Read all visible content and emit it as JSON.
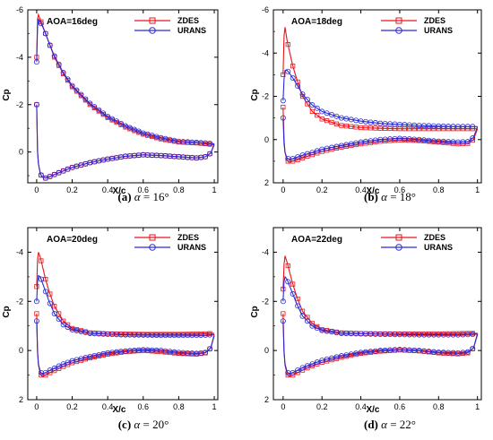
{
  "colors": {
    "zdes": "#e8141b",
    "urans": "#2a2ad6",
    "axis": "#000000"
  },
  "panels": [
    {
      "caption_letter": "(a)",
      "caption_rest": " = 16°",
      "caption_symbol": "α",
      "aoa_label": "AOA=16deg",
      "xlabel": "X/c",
      "ylabel": "Cp",
      "legend": [
        "ZDES",
        "URANS"
      ],
      "y_ticks": [
        "-6",
        "-4",
        "-2",
        "0"
      ],
      "x_ticks": [
        "0",
        "0.2",
        "0.4",
        "0.6",
        "0.8",
        "1"
      ]
    },
    {
      "caption_letter": "(b)",
      "caption_rest": " = 18°",
      "caption_symbol": "α",
      "aoa_label": "AOA=18deg",
      "xlabel": "X/c",
      "ylabel": "Cp",
      "legend": [
        "ZDES",
        "URANS"
      ],
      "y_ticks": [
        "-6",
        "-4",
        "-2",
        "0",
        "2"
      ],
      "x_ticks": [
        "0",
        "0.2",
        "0.4",
        "0.6",
        "0.8",
        "1"
      ]
    },
    {
      "caption_letter": "(c)",
      "caption_rest": " = 20°",
      "caption_symbol": "α",
      "aoa_label": "AOA=20deg",
      "xlabel": "X/c",
      "ylabel": "Cp",
      "legend": [
        "ZDES",
        "URANS"
      ],
      "y_ticks": [
        "-4",
        "-2",
        "0",
        "2"
      ],
      "x_ticks": [
        "0",
        "0.2",
        "0.4",
        "0.6",
        "0.8",
        "1"
      ]
    },
    {
      "caption_letter": "(d)",
      "caption_rest": " = 22°",
      "caption_symbol": "α",
      "aoa_label": "AOA=22deg",
      "xlabel": "X/c",
      "ylabel": "Cp",
      "legend": [
        "ZDES",
        "URANS"
      ],
      "y_ticks": [
        "-4",
        "-2",
        "0",
        "2"
      ],
      "x_ticks": [
        "0",
        "0.2",
        "0.4",
        "0.6",
        "0.8",
        "1"
      ]
    }
  ],
  "chart_data": [
    {
      "type": "line",
      "x_range": [
        -0.05,
        1.02
      ],
      "y_range": [
        -6,
        1.3
      ],
      "y_inverted": true,
      "series": [
        {
          "name": "ZDES",
          "upper": {
            "x": [
              1.0,
              0.95,
              0.9,
              0.8,
              0.7,
              0.6,
              0.5,
              0.4,
              0.3,
              0.2,
              0.15,
              0.1,
              0.07,
              0.05,
              0.03,
              0.02,
              0.01,
              0.005,
              0.0
            ],
            "y": [
              -0.3,
              -0.35,
              -0.38,
              -0.42,
              -0.55,
              -0.75,
              -1.05,
              -1.45,
              -2.0,
              -2.75,
              -3.3,
              -4.0,
              -4.6,
              -5.0,
              -5.4,
              -5.6,
              -5.8,
              -5.6,
              -4.0
            ]
          },
          "lower": {
            "x": [
              0.0,
              0.005,
              0.01,
              0.02,
              0.03,
              0.05,
              0.07,
              0.1,
              0.15,
              0.2,
              0.3,
              0.4,
              0.5,
              0.6,
              0.7,
              0.8,
              0.9,
              0.95,
              0.98,
              1.0
            ],
            "y": [
              -2.0,
              0.0,
              0.5,
              0.9,
              1.05,
              1.1,
              1.05,
              0.95,
              0.8,
              0.65,
              0.45,
              0.3,
              0.18,
              0.12,
              0.15,
              0.2,
              0.25,
              0.2,
              0.05,
              -0.3
            ]
          }
        },
        {
          "name": "URANS",
          "upper": {
            "x": [
              1.0,
              0.95,
              0.9,
              0.8,
              0.7,
              0.6,
              0.5,
              0.4,
              0.3,
              0.2,
              0.15,
              0.1,
              0.07,
              0.05,
              0.03,
              0.02,
              0.01,
              0.005,
              0.0
            ],
            "y": [
              -0.35,
              -0.38,
              -0.4,
              -0.45,
              -0.6,
              -0.8,
              -1.1,
              -1.5,
              -2.05,
              -2.8,
              -3.35,
              -4.05,
              -4.6,
              -5.0,
              -5.35,
              -5.5,
              -5.6,
              -5.3,
              -3.8
            ]
          },
          "lower": {
            "x": [
              0.0,
              0.005,
              0.01,
              0.02,
              0.03,
              0.05,
              0.07,
              0.1,
              0.15,
              0.2,
              0.3,
              0.4,
              0.5,
              0.6,
              0.7,
              0.8,
              0.9,
              0.95,
              0.98,
              1.0
            ],
            "y": [
              -2.0,
              0.0,
              0.5,
              0.9,
              1.05,
              1.1,
              1.05,
              0.95,
              0.8,
              0.65,
              0.45,
              0.3,
              0.18,
              0.12,
              0.15,
              0.2,
              0.25,
              0.2,
              0.05,
              -0.35
            ]
          }
        }
      ]
    },
    {
      "type": "line",
      "x_range": [
        -0.05,
        1.02
      ],
      "y_range": [
        -6,
        2
      ],
      "y_inverted": true,
      "series": [
        {
          "name": "ZDES",
          "upper": {
            "x": [
              1.0,
              0.95,
              0.9,
              0.8,
              0.7,
              0.6,
              0.5,
              0.4,
              0.3,
              0.2,
              0.15,
              0.1,
              0.07,
              0.05,
              0.03,
              0.02,
              0.01,
              0.005,
              0.0
            ],
            "y": [
              -0.5,
              -0.5,
              -0.5,
              -0.5,
              -0.5,
              -0.5,
              -0.52,
              -0.55,
              -0.65,
              -0.95,
              -1.3,
              -2.0,
              -2.8,
              -3.4,
              -4.2,
              -4.6,
              -5.2,
              -4.8,
              -3.0
            ]
          },
          "lower": {
            "x": [
              0.0,
              0.005,
              0.01,
              0.02,
              0.03,
              0.05,
              0.07,
              0.1,
              0.15,
              0.2,
              0.3,
              0.4,
              0.5,
              0.6,
              0.7,
              0.8,
              0.9,
              0.95,
              0.98,
              1.0
            ],
            "y": [
              -1.5,
              0.0,
              0.6,
              0.95,
              1.05,
              1.0,
              0.95,
              0.85,
              0.7,
              0.55,
              0.35,
              0.2,
              0.08,
              0.02,
              0.05,
              0.12,
              0.2,
              0.18,
              0.0,
              -0.5
            ]
          }
        },
        {
          "name": "URANS",
          "upper": {
            "x": [
              1.0,
              0.95,
              0.9,
              0.8,
              0.7,
              0.6,
              0.5,
              0.4,
              0.3,
              0.2,
              0.15,
              0.1,
              0.07,
              0.05,
              0.03,
              0.02,
              0.01,
              0.005,
              0.0
            ],
            "y": [
              -0.6,
              -0.6,
              -0.6,
              -0.62,
              -0.65,
              -0.7,
              -0.75,
              -0.85,
              -1.0,
              -1.3,
              -1.6,
              -2.1,
              -2.55,
              -2.85,
              -3.1,
              -3.2,
              -3.2,
              -2.8,
              -1.8
            ]
          },
          "lower": {
            "x": [
              0.0,
              0.005,
              0.01,
              0.02,
              0.03,
              0.05,
              0.07,
              0.1,
              0.15,
              0.2,
              0.3,
              0.4,
              0.5,
              0.6,
              0.7,
              0.8,
              0.9,
              0.95,
              0.98,
              1.0
            ],
            "y": [
              -1.0,
              0.2,
              0.6,
              0.85,
              0.9,
              0.88,
              0.82,
              0.72,
              0.6,
              0.45,
              0.28,
              0.12,
              0.0,
              -0.05,
              0.0,
              0.08,
              0.12,
              0.1,
              -0.1,
              -0.6
            ]
          }
        }
      ]
    },
    {
      "type": "line",
      "x_range": [
        -0.05,
        1.02
      ],
      "y_range": [
        -5,
        2
      ],
      "y_inverted": true,
      "series": [
        {
          "name": "ZDES",
          "upper": {
            "x": [
              1.0,
              0.95,
              0.9,
              0.8,
              0.7,
              0.6,
              0.5,
              0.4,
              0.3,
              0.2,
              0.15,
              0.1,
              0.07,
              0.05,
              0.03,
              0.02,
              0.01,
              0.005,
              0.0
            ],
            "y": [
              -0.7,
              -0.68,
              -0.67,
              -0.66,
              -0.66,
              -0.66,
              -0.67,
              -0.68,
              -0.72,
              -0.9,
              -1.2,
              -1.8,
              -2.4,
              -2.9,
              -3.5,
              -3.8,
              -4.0,
              -3.7,
              -2.6
            ]
          },
          "lower": {
            "x": [
              0.0,
              0.005,
              0.01,
              0.02,
              0.03,
              0.05,
              0.07,
              0.1,
              0.15,
              0.2,
              0.3,
              0.4,
              0.5,
              0.6,
              0.7,
              0.8,
              0.9,
              0.95,
              0.98,
              1.0
            ],
            "y": [
              -1.5,
              0.0,
              0.6,
              0.95,
              1.05,
              1.0,
              0.92,
              0.82,
              0.65,
              0.5,
              0.3,
              0.15,
              0.05,
              0.0,
              0.05,
              0.12,
              0.15,
              0.1,
              -0.1,
              -0.65
            ]
          }
        },
        {
          "name": "URANS",
          "upper": {
            "x": [
              1.0,
              0.95,
              0.9,
              0.8,
              0.7,
              0.6,
              0.5,
              0.4,
              0.3,
              0.2,
              0.15,
              0.1,
              0.07,
              0.05,
              0.03,
              0.02,
              0.01,
              0.005,
              0.0
            ],
            "y": [
              -0.65,
              -0.63,
              -0.62,
              -0.62,
              -0.62,
              -0.63,
              -0.64,
              -0.66,
              -0.7,
              -0.85,
              -1.05,
              -1.5,
              -2.0,
              -2.4,
              -2.8,
              -3.0,
              -3.05,
              -2.8,
              -2.0
            ]
          },
          "lower": {
            "x": [
              0.0,
              0.005,
              0.01,
              0.02,
              0.03,
              0.05,
              0.07,
              0.1,
              0.15,
              0.2,
              0.3,
              0.4,
              0.5,
              0.6,
              0.7,
              0.8,
              0.9,
              0.95,
              0.98,
              1.0
            ],
            "y": [
              -1.2,
              0.1,
              0.55,
              0.85,
              0.95,
              0.9,
              0.82,
              0.72,
              0.55,
              0.42,
              0.25,
              0.1,
              0.02,
              -0.03,
              0.0,
              0.08,
              0.12,
              0.08,
              -0.1,
              -0.6
            ]
          }
        }
      ]
    },
    {
      "type": "line",
      "x_range": [
        -0.05,
        1.02
      ],
      "y_range": [
        -5,
        2
      ],
      "y_inverted": true,
      "series": [
        {
          "name": "ZDES",
          "upper": {
            "x": [
              1.0,
              0.95,
              0.9,
              0.8,
              0.7,
              0.6,
              0.5,
              0.4,
              0.3,
              0.2,
              0.15,
              0.1,
              0.07,
              0.05,
              0.03,
              0.02,
              0.01,
              0.005,
              0.0
            ],
            "y": [
              -0.7,
              -0.7,
              -0.69,
              -0.68,
              -0.68,
              -0.68,
              -0.68,
              -0.69,
              -0.72,
              -0.85,
              -1.1,
              -1.6,
              -2.2,
              -2.7,
              -3.3,
              -3.6,
              -3.85,
              -3.5,
              -2.5
            ]
          },
          "lower": {
            "x": [
              0.0,
              0.005,
              0.01,
              0.02,
              0.03,
              0.05,
              0.07,
              0.1,
              0.15,
              0.2,
              0.3,
              0.4,
              0.5,
              0.6,
              0.7,
              0.8,
              0.9,
              0.95,
              0.98,
              1.0
            ],
            "y": [
              -1.5,
              0.0,
              0.6,
              0.95,
              1.05,
              1.0,
              0.92,
              0.8,
              0.62,
              0.48,
              0.28,
              0.12,
              0.03,
              -0.02,
              0.02,
              0.1,
              0.14,
              0.1,
              -0.1,
              -0.7
            ]
          }
        },
        {
          "name": "URANS",
          "upper": {
            "x": [
              1.0,
              0.95,
              0.9,
              0.8,
              0.7,
              0.6,
              0.5,
              0.4,
              0.3,
              0.2,
              0.15,
              0.1,
              0.07,
              0.05,
              0.03,
              0.02,
              0.01,
              0.005,
              0.0
            ],
            "y": [
              -0.66,
              -0.65,
              -0.64,
              -0.64,
              -0.64,
              -0.65,
              -0.66,
              -0.68,
              -0.7,
              -0.82,
              -1.0,
              -1.4,
              -1.9,
              -2.3,
              -2.7,
              -2.9,
              -3.0,
              -2.8,
              -2.0
            ]
          },
          "lower": {
            "x": [
              0.0,
              0.005,
              0.01,
              0.02,
              0.03,
              0.05,
              0.07,
              0.1,
              0.15,
              0.2,
              0.3,
              0.4,
              0.5,
              0.6,
              0.7,
              0.8,
              0.9,
              0.95,
              0.98,
              1.0
            ],
            "y": [
              -1.2,
              0.1,
              0.55,
              0.85,
              0.95,
              0.9,
              0.82,
              0.7,
              0.55,
              0.4,
              0.22,
              0.08,
              0.0,
              -0.04,
              0.0,
              0.07,
              0.1,
              0.06,
              -0.1,
              -0.65
            ]
          }
        }
      ]
    }
  ]
}
